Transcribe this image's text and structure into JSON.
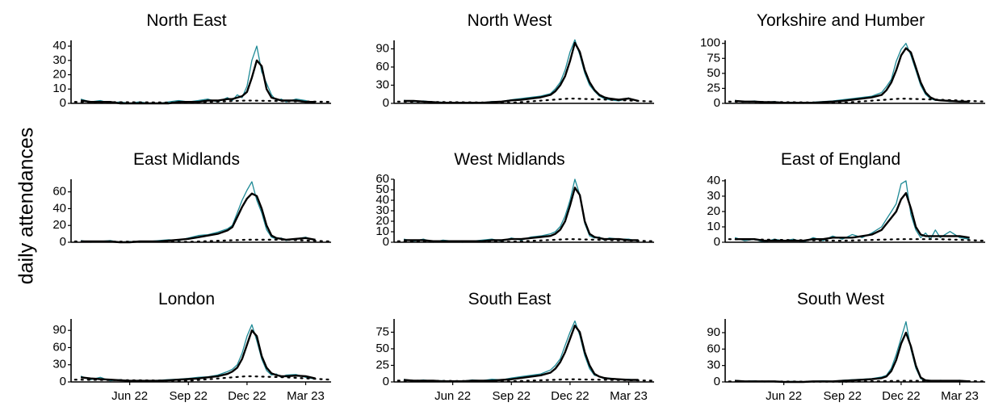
{
  "y_label": "daily attendances",
  "chart_data": [
    {
      "type": "line",
      "title": "North East",
      "xlim": [
        2,
        15.3
      ],
      "ylim": [
        0,
        44
      ],
      "yticks": [
        0,
        10,
        20,
        30,
        40
      ],
      "x": [
        2.5,
        3,
        3.5,
        4,
        4.5,
        5,
        5.5,
        6,
        6.5,
        7,
        7.5,
        8,
        8.5,
        9,
        9.5,
        10,
        10.25,
        10.5,
        10.75,
        11,
        11.25,
        11.5,
        11.75,
        12,
        12.25,
        12.5,
        12.75,
        13,
        13.5,
        14,
        14.5
      ],
      "series": [
        {
          "color": "#1f8a96",
          "values": [
            3,
            1,
            2,
            0,
            1,
            0,
            1,
            0,
            0,
            1,
            2,
            1,
            2,
            3,
            1,
            4,
            2,
            6,
            4,
            12,
            30,
            40,
            22,
            14,
            6,
            2,
            3,
            1,
            3,
            2,
            0
          ]
        },
        {
          "color": "#000000",
          "values": [
            2,
            1,
            1,
            1,
            0,
            0,
            0,
            0,
            0,
            0,
            1,
            1,
            1,
            2,
            2,
            3,
            3,
            4,
            5,
            8,
            18,
            30,
            26,
            10,
            4,
            3,
            2,
            2,
            2,
            1,
            1
          ]
        },
        {
          "color": "#000000",
          "dash": "dotted",
          "x": [
            2.2,
            8,
            11,
            13,
            15.3
          ],
          "values": [
            1,
            0.5,
            2,
            1.5,
            1
          ]
        }
      ]
    },
    {
      "type": "line",
      "title": "North West",
      "xlim": [
        2,
        15.3
      ],
      "ylim": [
        0,
        104
      ],
      "yticks": [
        0,
        30,
        60,
        90
      ],
      "x": [
        2.5,
        3,
        3.5,
        4,
        4.5,
        5,
        5.5,
        6,
        6.5,
        7,
        7.5,
        8,
        8.5,
        9,
        9.5,
        10,
        10.25,
        10.5,
        10.75,
        11,
        11.25,
        11.5,
        11.75,
        12,
        12.25,
        12.5,
        12.75,
        13,
        13.5,
        14,
        14.5
      ],
      "series": [
        {
          "color": "#1f8a96",
          "values": [
            5,
            3,
            4,
            2,
            2,
            1,
            1,
            0,
            1,
            3,
            3,
            6,
            8,
            10,
            12,
            16,
            24,
            35,
            55,
            85,
            105,
            80,
            50,
            30,
            20,
            12,
            8,
            6,
            4,
            9,
            3
          ]
        },
        {
          "color": "#000000",
          "values": [
            4,
            4,
            3,
            2,
            1,
            1,
            1,
            1,
            1,
            2,
            3,
            5,
            6,
            8,
            10,
            14,
            20,
            30,
            45,
            70,
            100,
            85,
            55,
            35,
            22,
            14,
            10,
            8,
            6,
            8,
            4
          ]
        },
        {
          "color": "#000000",
          "dash": "dotted",
          "x": [
            2.2,
            8,
            11,
            13,
            15.3
          ],
          "values": [
            3,
            1,
            8,
            6,
            3
          ]
        }
      ]
    },
    {
      "type": "line",
      "title": "Yorkshire and Humber",
      "xlim": [
        2,
        15.3
      ],
      "ylim": [
        0,
        105
      ],
      "yticks": [
        0,
        25,
        50,
        75,
        100
      ],
      "x": [
        2.5,
        3,
        3.5,
        4,
        4.5,
        5,
        5.5,
        6,
        6.5,
        7,
        7.5,
        8,
        8.5,
        9,
        9.5,
        10,
        10.25,
        10.5,
        10.75,
        11,
        11.25,
        11.5,
        11.75,
        12,
        12.25,
        12.5,
        12.75,
        13,
        13.5,
        14,
        14.5
      ],
      "series": [
        {
          "color": "#1f8a96",
          "values": [
            5,
            2,
            4,
            1,
            3,
            1,
            2,
            0,
            2,
            3,
            4,
            6,
            8,
            10,
            12,
            18,
            28,
            40,
            70,
            90,
            100,
            80,
            55,
            30,
            15,
            8,
            5,
            6,
            3,
            4,
            2
          ]
        },
        {
          "color": "#000000",
          "values": [
            4,
            3,
            3,
            2,
            2,
            1,
            1,
            1,
            1,
            2,
            3,
            4,
            6,
            8,
            10,
            14,
            22,
            35,
            55,
            80,
            92,
            85,
            60,
            35,
            18,
            10,
            6,
            5,
            4,
            3,
            3
          ]
        },
        {
          "color": "#000000",
          "dash": "dotted",
          "x": [
            2.2,
            8,
            11,
            13,
            15.3
          ],
          "values": [
            3,
            1,
            8,
            6,
            3
          ]
        }
      ]
    },
    {
      "type": "line",
      "title": "East Midlands",
      "xlim": [
        2,
        15.3
      ],
      "ylim": [
        0,
        75
      ],
      "yticks": [
        0,
        20,
        40,
        60
      ],
      "x": [
        2.5,
        3,
        3.5,
        4,
        4.5,
        5,
        5.5,
        6,
        6.5,
        7,
        7.5,
        8,
        8.5,
        9,
        9.5,
        10,
        10.25,
        10.5,
        10.75,
        11,
        11.25,
        11.5,
        11.75,
        12,
        12.25,
        12.5,
        12.75,
        13,
        13.5,
        14,
        14.5
      ],
      "series": [
        {
          "color": "#1f8a96",
          "values": [
            2,
            0,
            1,
            2,
            0,
            1,
            0,
            1,
            2,
            3,
            2,
            5,
            8,
            9,
            12,
            16,
            20,
            35,
            50,
            62,
            72,
            50,
            35,
            15,
            6,
            4,
            5,
            2,
            4,
            6,
            2
          ]
        },
        {
          "color": "#000000",
          "values": [
            1,
            1,
            1,
            1,
            0,
            0,
            1,
            1,
            1,
            2,
            3,
            4,
            6,
            8,
            10,
            14,
            18,
            30,
            42,
            52,
            58,
            55,
            40,
            20,
            8,
            5,
            4,
            3,
            4,
            5,
            3
          ]
        },
        {
          "color": "#000000",
          "dash": "dotted",
          "x": [
            2.2,
            8,
            11,
            13,
            15.3
          ],
          "values": [
            1,
            0.5,
            3,
            3,
            1
          ]
        }
      ]
    },
    {
      "type": "line",
      "title": "West Midlands",
      "xlim": [
        2,
        15.3
      ],
      "ylim": [
        0,
        60
      ],
      "yticks": [
        0,
        10,
        20,
        30,
        40,
        50,
        60
      ],
      "x": [
        2.5,
        3,
        3.5,
        4,
        4.5,
        5,
        5.5,
        6,
        6.5,
        7,
        7.5,
        8,
        8.5,
        9,
        9.5,
        10,
        10.25,
        10.5,
        10.75,
        11,
        11.25,
        11.5,
        11.75,
        12,
        12.25,
        12.5,
        12.75,
        13,
        13.5,
        14,
        14.5
      ],
      "series": [
        {
          "color": "#1f8a96",
          "values": [
            3,
            1,
            3,
            0,
            2,
            1,
            0,
            1,
            2,
            3,
            1,
            4,
            2,
            5,
            6,
            8,
            10,
            15,
            25,
            40,
            60,
            45,
            18,
            6,
            4,
            5,
            2,
            4,
            3,
            3,
            1
          ]
        },
        {
          "color": "#000000",
          "values": [
            2,
            2,
            2,
            1,
            1,
            1,
            1,
            1,
            1,
            2,
            2,
            3,
            3,
            4,
            5,
            6,
            8,
            12,
            20,
            35,
            52,
            45,
            20,
            8,
            5,
            4,
            3,
            3,
            3,
            2,
            2
          ]
        },
        {
          "color": "#000000",
          "dash": "dotted",
          "x": [
            2.2,
            8,
            11,
            13,
            15.3
          ],
          "values": [
            1,
            0.5,
            3,
            2,
            1
          ]
        }
      ]
    },
    {
      "type": "line",
      "title": "East of England",
      "xlim": [
        2,
        15.3
      ],
      "ylim": [
        0,
        41
      ],
      "yticks": [
        0,
        10,
        20,
        30,
        40
      ],
      "x": [
        2.5,
        3,
        3.5,
        4,
        4.5,
        5,
        5.5,
        6,
        6.5,
        7,
        7.5,
        8,
        8.5,
        9,
        9.5,
        10,
        10.25,
        10.5,
        10.75,
        11,
        11.25,
        11.5,
        11.75,
        12,
        12.25,
        12.5,
        12.75,
        13,
        13.5,
        14,
        14.5
      ],
      "series": [
        {
          "color": "#1f8a96",
          "values": [
            3,
            1,
            2,
            0,
            2,
            1,
            2,
            0,
            3,
            1,
            4,
            2,
            5,
            3,
            6,
            10,
            15,
            20,
            25,
            38,
            40,
            18,
            8,
            3,
            6,
            2,
            8,
            3,
            7,
            3,
            2
          ]
        },
        {
          "color": "#000000",
          "values": [
            2,
            2,
            2,
            1,
            1,
            1,
            1,
            1,
            2,
            2,
            3,
            3,
            3,
            4,
            5,
            8,
            12,
            16,
            20,
            28,
            32,
            22,
            10,
            5,
            4,
            4,
            4,
            4,
            4,
            4,
            3
          ]
        },
        {
          "color": "#000000",
          "dash": "dotted",
          "x": [
            2.2,
            8,
            11,
            13,
            15.3
          ],
          "values": [
            2,
            1,
            2,
            2,
            1
          ]
        }
      ]
    },
    {
      "type": "line",
      "title": "London",
      "xlim": [
        2,
        15.3
      ],
      "ylim": [
        0,
        110
      ],
      "yticks": [
        0,
        30,
        60,
        90
      ],
      "xticks": [
        {
          "value": 5,
          "label": "Jun 22"
        },
        {
          "value": 8,
          "label": "Sep 22"
        },
        {
          "value": 11,
          "label": "Dec 22"
        },
        {
          "value": 14,
          "label": "Mar 23"
        }
      ],
      "x": [
        2.5,
        3,
        3.5,
        4,
        4.5,
        5,
        5.5,
        6,
        6.5,
        7,
        7.5,
        8,
        8.5,
        9,
        9.5,
        10,
        10.25,
        10.5,
        10.75,
        11,
        11.25,
        11.5,
        11.75,
        12,
        12.25,
        12.5,
        12.75,
        13,
        13.5,
        14,
        14.5
      ],
      "series": [
        {
          "color": "#1f8a96",
          "values": [
            10,
            4,
            8,
            2,
            4,
            1,
            3,
            2,
            3,
            4,
            5,
            6,
            8,
            9,
            12,
            18,
            22,
            30,
            50,
            80,
            100,
            72,
            40,
            20,
            12,
            14,
            8,
            12,
            13,
            8,
            5
          ]
        },
        {
          "color": "#000000",
          "values": [
            8,
            6,
            5,
            4,
            3,
            2,
            2,
            2,
            2,
            3,
            4,
            5,
            6,
            8,
            10,
            14,
            18,
            25,
            40,
            65,
            90,
            80,
            45,
            25,
            15,
            12,
            10,
            10,
            11,
            10,
            6
          ]
        },
        {
          "color": "#000000",
          "dash": "dotted",
          "x": [
            2.2,
            8,
            11,
            13,
            15.3
          ],
          "values": [
            4,
            2,
            10,
            8,
            4
          ]
        }
      ]
    },
    {
      "type": "line",
      "title": "South East",
      "xlim": [
        2,
        15.3
      ],
      "ylim": [
        0,
        95
      ],
      "yticks": [
        0,
        25,
        50,
        75
      ],
      "xticks": [
        {
          "value": 5,
          "label": "Jun 22"
        },
        {
          "value": 8,
          "label": "Sep 22"
        },
        {
          "value": 11,
          "label": "Dec 22"
        },
        {
          "value": 14,
          "label": "Mar 23"
        }
      ],
      "x": [
        2.5,
        3,
        3.5,
        4,
        4.5,
        5,
        5.5,
        6,
        6.5,
        7,
        7.5,
        8,
        8.5,
        9,
        9.5,
        10,
        10.25,
        10.5,
        10.75,
        11,
        11.25,
        11.5,
        11.75,
        12,
        12.25,
        12.5,
        12.75,
        13,
        13.5,
        14,
        14.5
      ],
      "series": [
        {
          "color": "#1f8a96",
          "values": [
            4,
            1,
            3,
            1,
            2,
            0,
            1,
            3,
            2,
            4,
            3,
            6,
            8,
            10,
            12,
            18,
            25,
            35,
            55,
            75,
            92,
            70,
            40,
            20,
            10,
            8,
            5,
            6,
            3,
            4,
            2
          ]
        },
        {
          "color": "#000000",
          "values": [
            3,
            2,
            2,
            2,
            1,
            1,
            1,
            2,
            2,
            2,
            3,
            4,
            6,
            8,
            10,
            14,
            20,
            30,
            45,
            65,
            85,
            75,
            45,
            25,
            12,
            8,
            6,
            5,
            4,
            3,
            3
          ]
        },
        {
          "color": "#000000",
          "dash": "dotted",
          "x": [
            2.2,
            8,
            11,
            13,
            15.3
          ],
          "values": [
            2,
            1,
            4,
            3,
            2
          ]
        }
      ]
    },
    {
      "type": "line",
      "title": "South West",
      "xlim": [
        2,
        15.3
      ],
      "ylim": [
        0,
        115
      ],
      "yticks": [
        0,
        30,
        60,
        90
      ],
      "xticks": [
        {
          "value": 5,
          "label": "Jun 22"
        },
        {
          "value": 8,
          "label": "Sep 22"
        },
        {
          "value": 11,
          "label": "Dec 22"
        },
        {
          "value": 14,
          "label": "Mar 23"
        }
      ],
      "x": [
        2.5,
        3,
        3.5,
        4,
        4.5,
        5,
        5.5,
        6,
        6.5,
        7,
        7.5,
        8,
        8.5,
        9,
        9.5,
        10,
        10.25,
        10.5,
        10.75,
        11,
        11.25,
        11.5,
        11.75,
        12,
        12.25,
        12.5,
        12.75,
        13,
        13.5,
        14,
        14.5
      ],
      "series": [
        {
          "color": "#1f8a96",
          "values": [
            3,
            1,
            2,
            0,
            1,
            0,
            1,
            0,
            1,
            2,
            1,
            3,
            4,
            5,
            6,
            9,
            12,
            25,
            50,
            80,
            110,
            60,
            25,
            6,
            2,
            3,
            1,
            3,
            2,
            3,
            0
          ]
        },
        {
          "color": "#000000",
          "values": [
            2,
            1,
            1,
            1,
            1,
            0,
            0,
            0,
            1,
            1,
            1,
            2,
            3,
            4,
            5,
            7,
            10,
            20,
            40,
            70,
            90,
            65,
            30,
            8,
            3,
            2,
            2,
            2,
            2,
            2,
            1
          ]
        },
        {
          "color": "#000000",
          "dash": "dotted",
          "x": [
            2.2,
            8,
            11,
            13,
            15.3
          ],
          "values": [
            1,
            0.5,
            2,
            2,
            1
          ]
        }
      ]
    }
  ]
}
